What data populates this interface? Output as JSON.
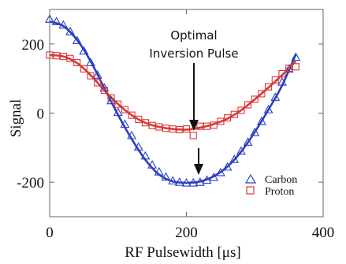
{
  "chart_data": {
    "type": "scatter",
    "xlabel": "RF Pulsewidth [μs]",
    "ylabel": "Signal",
    "xlim": [
      0,
      400
    ],
    "ylim": [
      -300,
      300
    ],
    "x_ticks": [
      0,
      200,
      400
    ],
    "y_ticks": [
      200,
      0,
      -200
    ],
    "x_tick_labels": [
      "0",
      "200",
      "400"
    ],
    "y_tick_labels": [
      "200",
      "0",
      "-200"
    ],
    "grid": false,
    "legend_position": "bottom-right",
    "annotation": {
      "lines": [
        "Optimal",
        "Inversion Pulse"
      ]
    },
    "series": [
      {
        "name": "Carbon",
        "marker": "triangle",
        "color": "#2b3fc0",
        "points": [
          [
            0,
            272
          ],
          [
            10,
            265
          ],
          [
            20,
            255
          ],
          [
            30,
            236
          ],
          [
            40,
            210
          ],
          [
            50,
            180
          ],
          [
            60,
            146
          ],
          [
            70,
            110
          ],
          [
            80,
            73
          ],
          [
            90,
            36
          ],
          [
            100,
            2
          ],
          [
            110,
            -32
          ],
          [
            120,
            -65
          ],
          [
            130,
            -98
          ],
          [
            140,
            -124
          ],
          [
            150,
            -150
          ],
          [
            160,
            -170
          ],
          [
            170,
            -185
          ],
          [
            180,
            -196
          ],
          [
            190,
            -200
          ],
          [
            200,
            -202
          ],
          [
            210,
            -202
          ],
          [
            220,
            -200
          ],
          [
            230,
            -194
          ],
          [
            240,
            -186
          ],
          [
            250,
            -172
          ],
          [
            260,
            -156
          ],
          [
            270,
            -134
          ],
          [
            280,
            -110
          ],
          [
            290,
            -84
          ],
          [
            300,
            -56
          ],
          [
            310,
            -24
          ],
          [
            320,
            10
          ],
          [
            330,
            46
          ],
          [
            340,
            90
          ],
          [
            350,
            128
          ],
          [
            360,
            162
          ]
        ],
        "fit": [
          [
            0,
            265
          ],
          [
            20,
            252
          ],
          [
            40,
            212
          ],
          [
            60,
            150
          ],
          [
            80,
            72
          ],
          [
            100,
            -5
          ],
          [
            120,
            -75
          ],
          [
            140,
            -135
          ],
          [
            160,
            -178
          ],
          [
            180,
            -198
          ],
          [
            200,
            -202
          ],
          [
            220,
            -198
          ],
          [
            240,
            -183
          ],
          [
            260,
            -155
          ],
          [
            280,
            -112
          ],
          [
            300,
            -55
          ],
          [
            320,
            10
          ],
          [
            340,
            80
          ],
          [
            360,
            170
          ]
        ]
      },
      {
        "name": "Proton",
        "marker": "square",
        "color": "#d83838",
        "points": [
          [
            0,
            168
          ],
          [
            10,
            166
          ],
          [
            20,
            164
          ],
          [
            30,
            158
          ],
          [
            40,
            146
          ],
          [
            50,
            128
          ],
          [
            60,
            108
          ],
          [
            70,
            88
          ],
          [
            80,
            66
          ],
          [
            90,
            44
          ],
          [
            100,
            26
          ],
          [
            110,
            10
          ],
          [
            120,
            -6
          ],
          [
            130,
            -18
          ],
          [
            140,
            -28
          ],
          [
            150,
            -36
          ],
          [
            160,
            -40
          ],
          [
            170,
            -44
          ],
          [
            180,
            -46
          ],
          [
            190,
            -48
          ],
          [
            200,
            -46
          ],
          [
            210,
            -65
          ],
          [
            220,
            -38
          ],
          [
            230,
            -38
          ],
          [
            240,
            -35
          ],
          [
            250,
            -24
          ],
          [
            260,
            -14
          ],
          [
            270,
            -4
          ],
          [
            280,
            8
          ],
          [
            290,
            24
          ],
          [
            300,
            40
          ],
          [
            310,
            56
          ],
          [
            320,
            76
          ],
          [
            330,
            96
          ],
          [
            340,
            114
          ],
          [
            350,
            130
          ],
          [
            360,
            134
          ]
        ],
        "fit": [
          [
            0,
            168
          ],
          [
            20,
            164
          ],
          [
            40,
            145
          ],
          [
            60,
            110
          ],
          [
            80,
            66
          ],
          [
            100,
            26
          ],
          [
            120,
            -6
          ],
          [
            140,
            -28
          ],
          [
            160,
            -40
          ],
          [
            180,
            -46
          ],
          [
            200,
            -48
          ],
          [
            220,
            -42
          ],
          [
            240,
            -32
          ],
          [
            260,
            -16
          ],
          [
            280,
            8
          ],
          [
            300,
            40
          ],
          [
            320,
            74
          ],
          [
            340,
            110
          ],
          [
            360,
            150
          ]
        ]
      }
    ]
  }
}
